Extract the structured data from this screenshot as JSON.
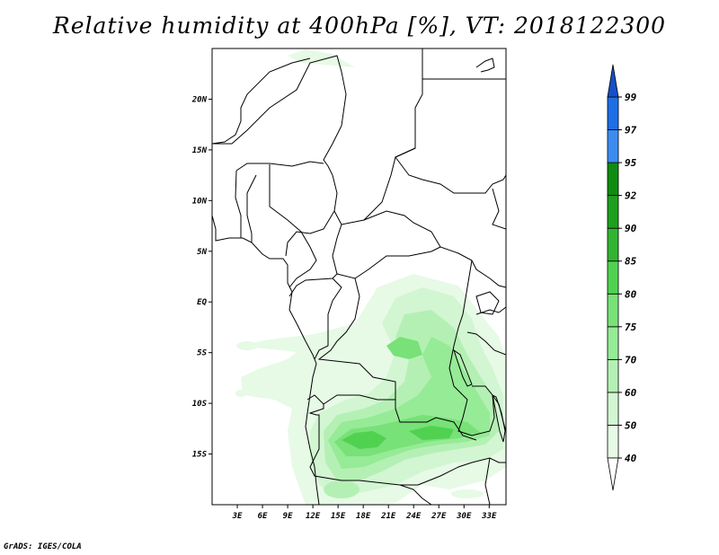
{
  "title": "Relative humidity at 400hPa [%], VT: 2018122300",
  "footer": "GrADS: IGES/COLA",
  "map": {
    "lon_range": [
      0,
      35
    ],
    "lat_range": [
      -20,
      25
    ],
    "lat_ticks": [
      {
        "value": 20,
        "label": "20N"
      },
      {
        "value": 15,
        "label": "15N"
      },
      {
        "value": 10,
        "label": "10N"
      },
      {
        "value": 5,
        "label": "5N"
      },
      {
        "value": 0,
        "label": "EQ"
      },
      {
        "value": -5,
        "label": "5S"
      },
      {
        "value": -10,
        "label": "10S"
      },
      {
        "value": -15,
        "label": "15S"
      }
    ],
    "lon_ticks": [
      {
        "value": 3,
        "label": "3E"
      },
      {
        "value": 6,
        "label": "6E"
      },
      {
        "value": 9,
        "label": "9E"
      },
      {
        "value": 12,
        "label": "12E"
      },
      {
        "value": 15,
        "label": "15E"
      },
      {
        "value": 18,
        "label": "18E"
      },
      {
        "value": 21,
        "label": "21E"
      },
      {
        "value": 24,
        "label": "24E"
      },
      {
        "value": 27,
        "label": "27E"
      },
      {
        "value": 30,
        "label": "30E"
      },
      {
        "value": 33,
        "label": "33E"
      }
    ]
  },
  "colorbar": {
    "levels": [
      {
        "label": "40",
        "color": "#ffffff"
      },
      {
        "label": "50",
        "color": "#e6fae6"
      },
      {
        "label": "60",
        "color": "#d2f5d2"
      },
      {
        "label": "70",
        "color": "#b4f0b4"
      },
      {
        "label": "75",
        "color": "#96eb96"
      },
      {
        "label": "80",
        "color": "#78e178"
      },
      {
        "label": "85",
        "color": "#50d250"
      },
      {
        "label": "90",
        "color": "#32b432"
      },
      {
        "label": "92",
        "color": "#1ea01e"
      },
      {
        "label": "95",
        "color": "#0f8c0f"
      },
      {
        "label": "97",
        "color": "#3c8cf0"
      },
      {
        "label": "99",
        "color": "#1e6ee6"
      }
    ],
    "top_color": "#1450c8",
    "bottom_color": "#ffffff"
  }
}
